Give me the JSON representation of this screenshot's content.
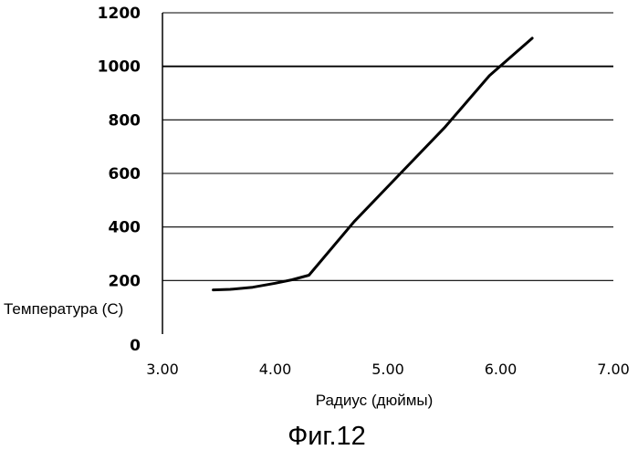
{
  "chart_data": {
    "type": "line",
    "title": "",
    "xlabel": "Радиус (дюймы)",
    "ylabel": "Температура (С)",
    "xlim": [
      3.0,
      7.0
    ],
    "ylim": [
      0,
      1200
    ],
    "x_ticks": [
      "3.00",
      "4.00",
      "5.00",
      "6.00",
      "7.00"
    ],
    "y_ticks": [
      "0",
      "200",
      "400",
      "600",
      "800",
      "1000",
      "1200"
    ],
    "grid": "horizontal",
    "series": [
      {
        "x": [
          3.45,
          3.6,
          3.8,
          4.0,
          4.15,
          4.3,
          4.7,
          5.1,
          5.5,
          5.9,
          6.28
        ],
        "y": [
          165,
          167,
          175,
          190,
          203,
          220,
          420,
          595,
          770,
          965,
          1105
        ],
        "color": "#000000"
      }
    ]
  },
  "caption": "Фиг.12"
}
